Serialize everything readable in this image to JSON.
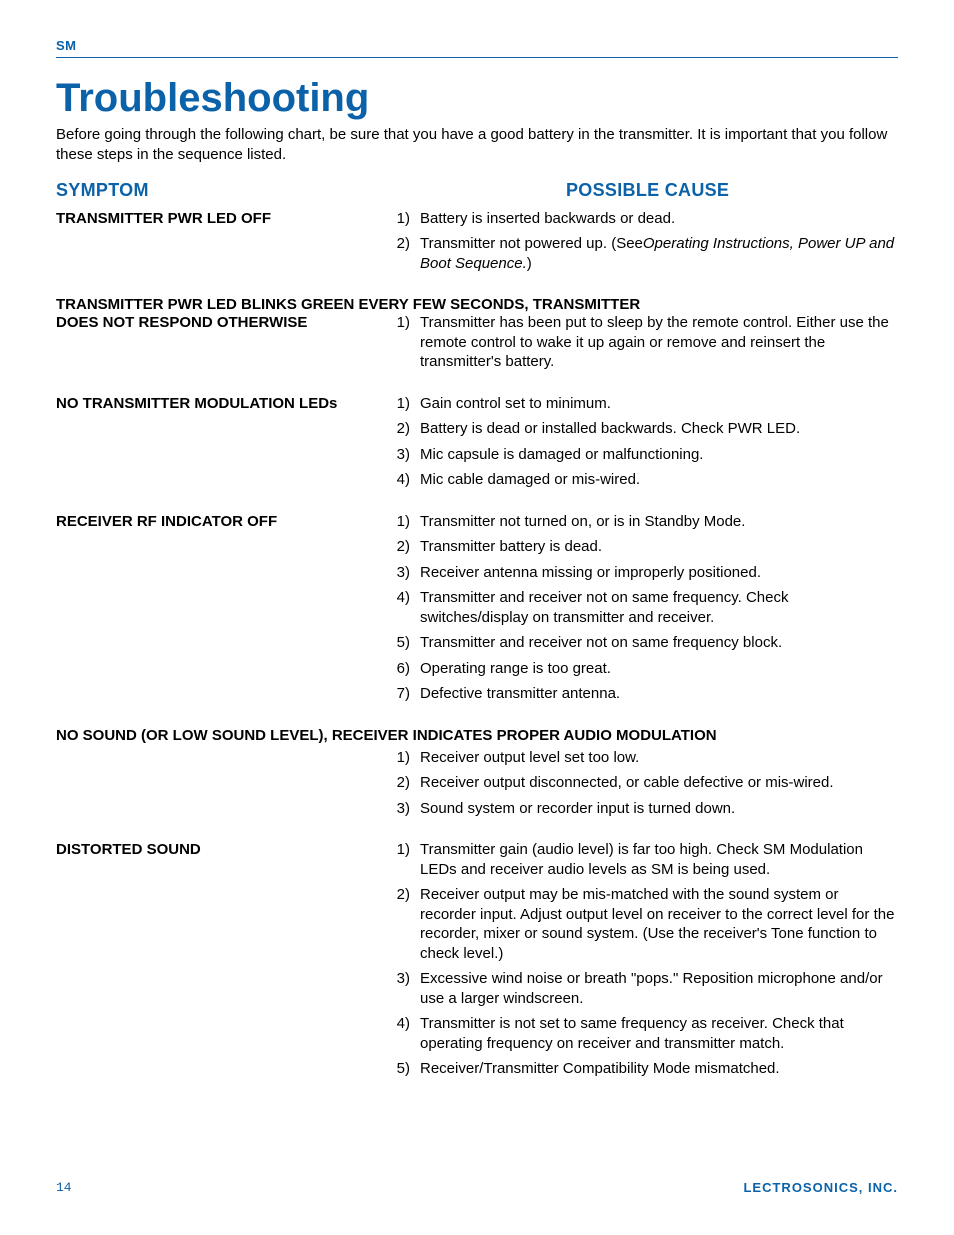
{
  "colors": {
    "brand_blue": "#0b62a8",
    "text": "#000000",
    "background": "#ffffff"
  },
  "typography": {
    "body_family": "Arial, Helvetica, sans-serif",
    "title_family": "Arial Narrow, Arial, sans-serif",
    "body_size_pt": 11,
    "title_size_pt": 30,
    "subheader_size_pt": 13
  },
  "header": {
    "brand": "SM"
  },
  "page": {
    "title": "Troubleshooting",
    "intro": "Before going through the following chart, be sure that you have a good battery in the transmitter.  It is important that you follow these steps in the sequence listed."
  },
  "columns": {
    "symptom": "SYMPTOM",
    "cause": "POSSIBLE CAUSE"
  },
  "sections": [
    {
      "symptom": "TRANSMITTER PWR LED OFF",
      "full_width_symptom": false,
      "causes": [
        {
          "n": "1)",
          "text": "Battery is inserted backwards or dead."
        },
        {
          "n": "2)",
          "text_pre": "Transmitter not powered up. (See",
          "text_italic": "Operating Instructions, Power UP and Boot Sequence.",
          "text_post": ")"
        }
      ]
    },
    {
      "symptom": "TRANSMITTER PWR LED BLINKS GREEN EVERY FEW SECONDS, TRANSMITTER",
      "symptom_line2": "DOES NOT RESPOND OTHERWISE",
      "overlap": true,
      "causes": [
        {
          "n": "1)",
          "text": "Transmitter has been put to sleep by the remote control. Either use the remote control to wake it up again or remove and reinsert the transmitter's battery."
        }
      ]
    },
    {
      "symptom": "NO TRANSMITTER MODULATION LEDs",
      "full_width_symptom": false,
      "causes": [
        {
          "n": "1)",
          "text": "Gain control set to minimum."
        },
        {
          "n": "2)",
          "text": "Battery is dead or installed backwards.  Check PWR LED."
        },
        {
          "n": "3)",
          "text": "Mic capsule is damaged or malfunctioning."
        },
        {
          "n": "4)",
          "text": "Mic cable damaged or mis-wired."
        }
      ]
    },
    {
      "symptom": "RECEIVER RF INDICATOR OFF",
      "full_width_symptom": false,
      "causes": [
        {
          "n": "1)",
          "text": "Transmitter not turned on, or is in Standby Mode."
        },
        {
          "n": "2)",
          "text": "Transmitter battery is dead."
        },
        {
          "n": "3)",
          "text": "Receiver antenna missing or improperly positioned."
        },
        {
          "n": "4)",
          "text": "Transmitter and receiver not on same frequency. Check switches/display on transmitter and receiver."
        },
        {
          "n": "5)",
          "text": "Transmitter and receiver not on same frequency block."
        },
        {
          "n": "6)",
          "text": "Operating range is too great."
        },
        {
          "n": "7)",
          "text": "Defective transmitter antenna."
        }
      ]
    },
    {
      "symptom": "NO SOUND (OR LOW SOUND LEVEL), RECEIVER INDICATES PROPER AUDIO MODULATION",
      "full_width_symptom": true,
      "causes": [
        {
          "n": "1)",
          "text": "Receiver output level set too low."
        },
        {
          "n": "2)",
          "text": "Receiver output disconnected, or cable defective or mis-wired."
        },
        {
          "n": "3)",
          "text": "Sound system or recorder input is turned down."
        }
      ]
    },
    {
      "symptom": "DISTORTED SOUND",
      "full_width_symptom": false,
      "causes": [
        {
          "n": "1)",
          "text": " Transmitter gain (audio level) is far too high.  Check SM Modulation LEDs and receiver audio levels as SM is being used."
        },
        {
          "n": "2)",
          "text": " Receiver output may be mis-matched with the sound system or recorder input.  Adjust output level on receiver to the correct level for the recorder, mixer or sound system.  (Use the receiver's Tone function to check level.)"
        },
        {
          "n": "3)",
          "text": " Excessive wind noise or breath \"pops.\"  Reposition microphone and/or use a larger windscreen."
        },
        {
          "n": "4)",
          "text": " Transmitter is not set to same frequency as receiver. Check that operating frequency on receiver and transmitter match."
        },
        {
          "n": "5)",
          "text": " Receiver/Transmitter Compatibility Mode mismatched."
        }
      ]
    }
  ],
  "footer": {
    "page_number": "14",
    "company": "LECTROSONICS, INC."
  }
}
